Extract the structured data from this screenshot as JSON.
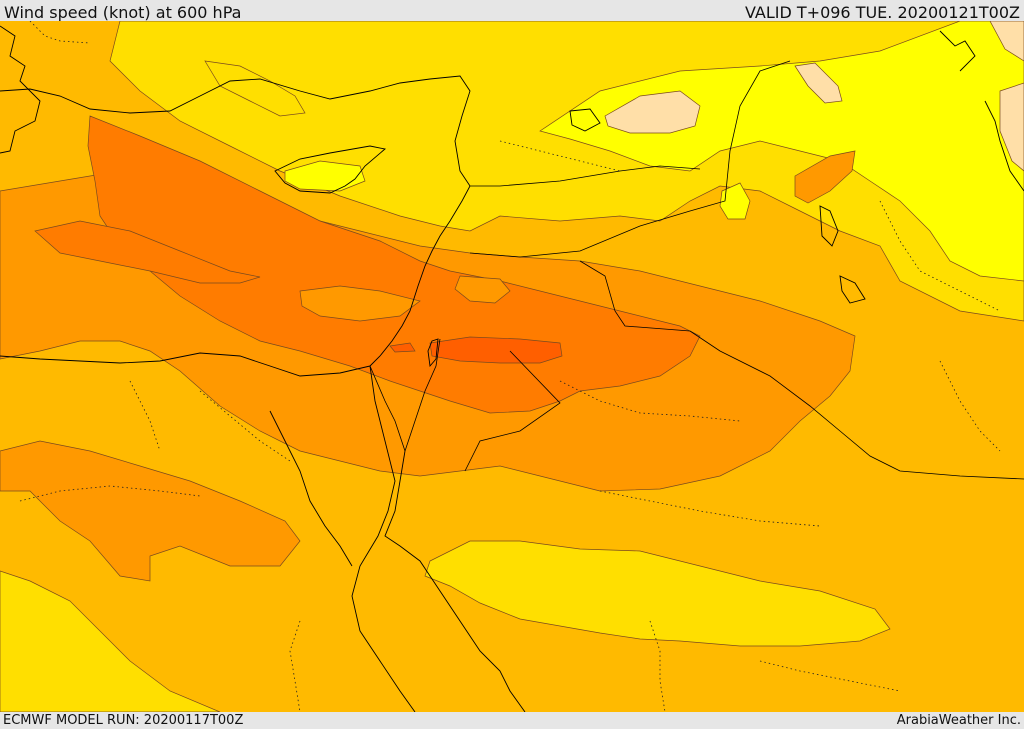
{
  "header": {
    "title": "Wind speed (knot) at 600 hPa",
    "valid_time": "VALID T+096 TUE. 20200121T00Z"
  },
  "footer": {
    "model_run": "ECMWF MODEL RUN: 20200117T00Z",
    "credit": "ArabiaWeather Inc."
  },
  "map": {
    "region": "Eastern Mediterranean / Levant",
    "fill_colors": {
      "very_strong": "#ff5f00",
      "strong": "#ff7c00",
      "moderate_high": "#ff9900",
      "moderate": "#ffba00",
      "low": "#ffdf00",
      "very_low": "#ffff00",
      "calm": "#ffdfa8"
    },
    "contour_color": "#7a4a1e",
    "coastline_color": "#000000",
    "border_style": "dotted"
  }
}
